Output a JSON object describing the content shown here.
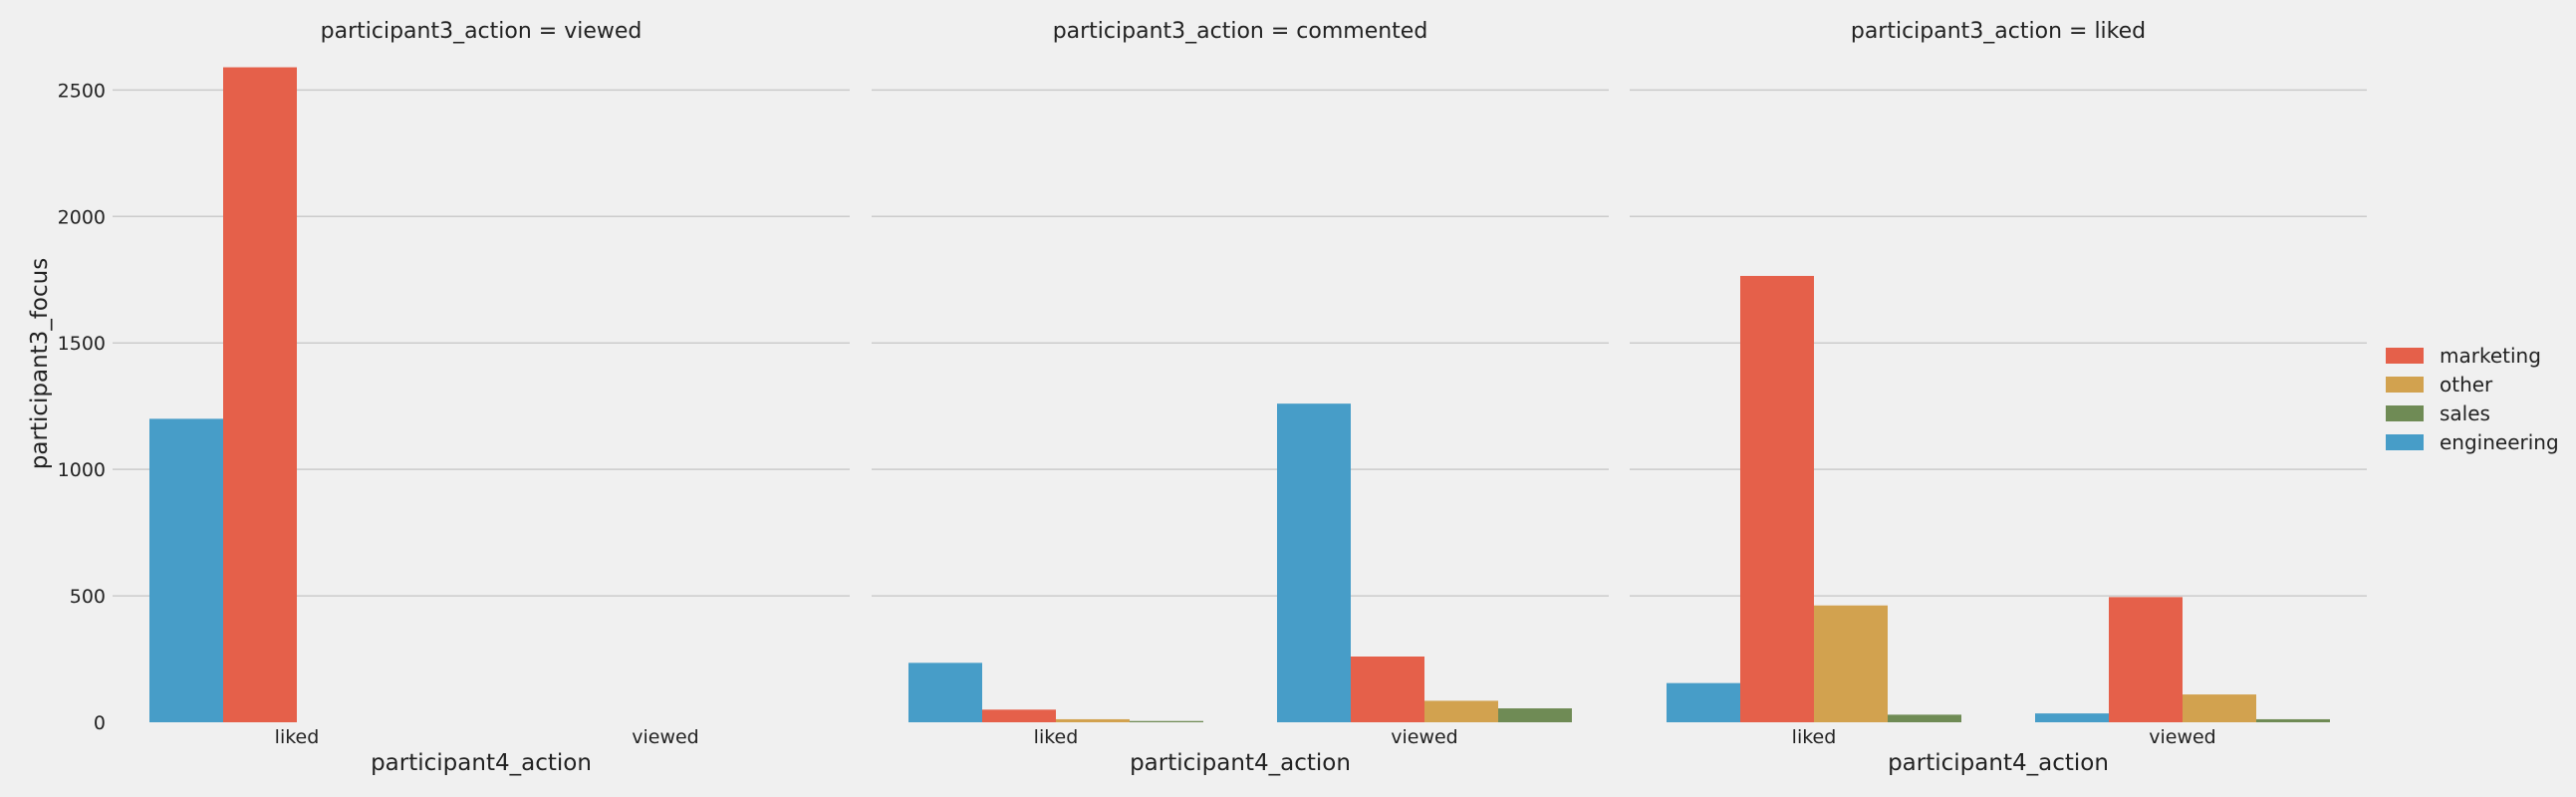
{
  "chart_data": {
    "type": "bar",
    "ylabel": "participant3_focus",
    "xlabel": "participant4_action",
    "categories": [
      "liked",
      "viewed"
    ],
    "ylim": [
      0,
      2600
    ],
    "yticks": [
      0,
      500,
      1000,
      1500,
      2000,
      2500
    ],
    "grid": true,
    "legend_position": "right",
    "legend": [
      {
        "name": "marketing",
        "color": "#e5604a"
      },
      {
        "name": "other",
        "color": "#d2a24f"
      },
      {
        "name": "sales",
        "color": "#6f8b55"
      },
      {
        "name": "engineering",
        "color": "#479dc8"
      }
    ],
    "panels": [
      {
        "title": "participant3_action = viewed",
        "series": [
          {
            "name": "engineering",
            "values": [
              1200,
              0
            ]
          },
          {
            "name": "marketing",
            "values": [
              2590,
              0
            ]
          }
        ]
      },
      {
        "title": "participant3_action = commented",
        "series": [
          {
            "name": "engineering",
            "values": [
              235,
              1260
            ]
          },
          {
            "name": "marketing",
            "values": [
              50,
              260
            ]
          },
          {
            "name": "other",
            "values": [
              12,
              85
            ]
          },
          {
            "name": "sales",
            "values": [
              5,
              55
            ]
          }
        ]
      },
      {
        "title": "participant3_action = liked",
        "series": [
          {
            "name": "engineering",
            "values": [
              155,
              35
            ]
          },
          {
            "name": "marketing",
            "values": [
              1765,
              495
            ]
          },
          {
            "name": "other",
            "values": [
              462,
              110
            ]
          },
          {
            "name": "sales",
            "values": [
              30,
              12
            ]
          }
        ]
      }
    ]
  }
}
